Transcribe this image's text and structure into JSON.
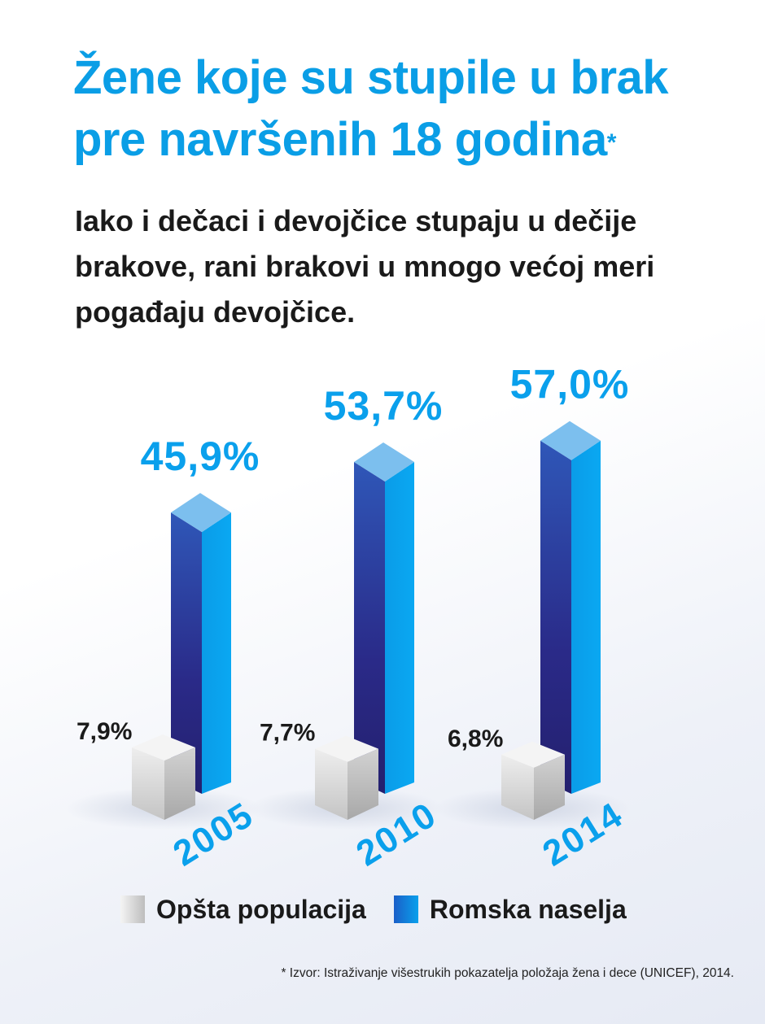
{
  "header": {
    "title": "Žene koje su stupile u brak pre navršenih 18 godina",
    "title_marker": "*",
    "subtitle": "Iako i dečaci i devojčice stupaju u dečije brakove, rani brakovi u mnogo većoj meri pogađaju devojčice."
  },
  "chart_data": {
    "type": "bar",
    "categories": [
      "2005",
      "2010",
      "2014"
    ],
    "series": [
      {
        "name": "Opšta populacija",
        "values": [
          7.9,
          7.7,
          6.8
        ],
        "labels": [
          "7,9%",
          "7,7%",
          "6,8%"
        ],
        "color": "#d4d4d4"
      },
      {
        "name": "Romska naselja",
        "values": [
          45.9,
          53.7,
          57.0
        ],
        "labels": [
          "45,9%",
          "53,7%",
          "57,0%"
        ],
        "color": "#0aa0ec",
        "color_dark": "#2a2a8a"
      }
    ],
    "title": "Žene koje su stupile u brak pre navršenih 18 godina",
    "xlabel": "",
    "ylabel": "",
    "grid": false,
    "legend": "bottom"
  },
  "legend": {
    "items": [
      {
        "label": "Opšta populacija"
      },
      {
        "label": "Romska naselja"
      }
    ]
  },
  "footnote": "*  Izvor: Istraživanje višestrukih pokazatelja položaja žena i dece (UNICEF), 2014.",
  "colors": {
    "title": "#0a9ee6",
    "value_label": "#0aa0ec",
    "bar_front": "#0aa0ec",
    "bar_side": "#2a2a8a",
    "bar_top": "#7dc0ee",
    "cube": "#d4d4d4"
  }
}
